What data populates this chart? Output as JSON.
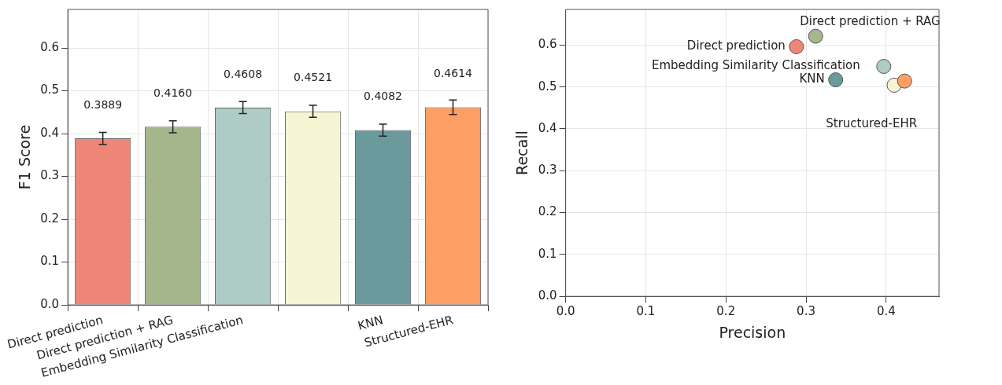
{
  "chart_data": [
    {
      "type": "bar",
      "ylabel": "F1 Score",
      "categories": [
        "Direct prediction",
        "Direct prediction + RAG",
        "Embedding Similarity Classification",
        null,
        "KNN",
        "Structured-EHR"
      ],
      "values": [
        0.3889,
        0.416,
        0.4608,
        0.4521,
        0.4082,
        0.4614
      ],
      "value_labels": [
        "0.3889",
        "0.4160",
        "0.4608",
        "0.4521",
        "0.4082",
        "0.4614"
      ],
      "errors": [
        0.014,
        0.014,
        0.014,
        0.014,
        0.014,
        0.017
      ],
      "colors": [
        "#ee8677",
        "#a5b68c",
        "#aecbc5",
        "#f5f5d4",
        "#6a9a9c",
        "#fd9e63"
      ],
      "ylim": [
        0,
        0.69
      ],
      "yticks": [
        {
          "value": 0,
          "label": "0.0"
        },
        0.1,
        0.2,
        0.3,
        0.4,
        0.5,
        0.6
      ],
      "grid": true
    },
    {
      "type": "scatter",
      "xlabel": "Precision",
      "ylabel": "Recall",
      "x": [
        0.288,
        0.312,
        0.397,
        0.41,
        0.337,
        0.423
      ],
      "values": [
        0.596,
        0.621,
        0.549,
        0.504,
        0.517,
        0.514
      ],
      "colors": [
        "#ee8677",
        "#a5b68c",
        "#aecbc5",
        "#f5f5d4",
        "#6a9a9c",
        "#fd9e63"
      ],
      "marker": "circle",
      "xlim": [
        0,
        0.466
      ],
      "xticks": [
        {
          "value": 0,
          "label": "0.0"
        },
        0.1,
        0.2,
        0.3,
        0.4
      ],
      "ylim": [
        0,
        0.685
      ],
      "yticks": [
        {
          "value": 0,
          "label": "0.0"
        },
        0.1,
        0.2,
        0.3,
        0.4,
        0.5,
        0.6
      ],
      "grid": true,
      "annotations": [
        {
          "text": "Direct prediction",
          "x": 0.288,
          "y": 0.596
        },
        {
          "text": "Direct prediction + RAG",
          "x": 0.312,
          "y": 0.621
        },
        {
          "text": "Embedding Similarity Classification",
          "x": 0.397,
          "y": 0.549
        },
        {
          "text": "KNN",
          "x": 0.337,
          "y": 0.517
        },
        {
          "text": "Structured-EHR",
          "x": 0.423,
          "y": 0.514
        }
      ]
    }
  ]
}
